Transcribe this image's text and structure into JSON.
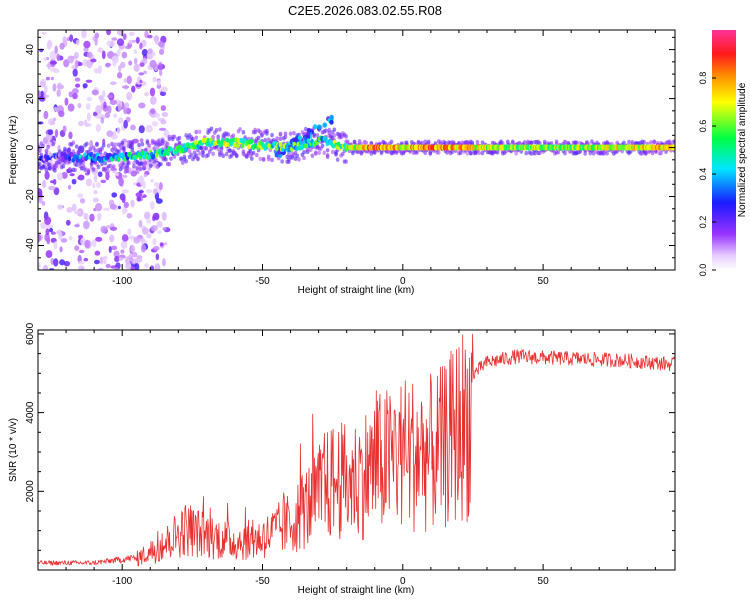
{
  "title": "C2E5.2026.083.02.55.R08",
  "colors": {
    "snr_line": "#e83030",
    "background": "#ffffff",
    "axis": "#000000"
  },
  "chart_data": [
    {
      "type": "heatmap",
      "xlabel": "Height of straight line (km)",
      "ylabel": "Frequency (Hz)",
      "xlim": [
        -130,
        97
      ],
      "ylim": [
        -50,
        48
      ],
      "x_ticks": [
        -100,
        -50,
        0,
        50
      ],
      "y_ticks": [
        -40,
        -20,
        0,
        20,
        40
      ],
      "colorbar": {
        "label": "Normalized spectral amplitude",
        "range": [
          0,
          1
        ],
        "ticks": [
          "0.0",
          "0.2",
          "0.4",
          "0.6",
          "0.8"
        ],
        "colormap": "rainbow (white, purple, blue, cyan, green, yellow, orange, red, magenta)"
      },
      "ridge": [
        {
          "x": -130,
          "freq": -4,
          "amp": 0.1
        },
        {
          "x": -110,
          "freq": -4,
          "amp": 0.35
        },
        {
          "x": -100,
          "freq": -4,
          "amp": 0.4
        },
        {
          "x": -90,
          "freq": -3,
          "amp": 0.45
        },
        {
          "x": -80,
          "freq": -1,
          "amp": 0.5
        },
        {
          "x": -70,
          "freq": 2,
          "amp": 0.55
        },
        {
          "x": -60,
          "freq": 2,
          "amp": 0.6
        },
        {
          "x": -50,
          "freq": 1,
          "amp": 0.55
        },
        {
          "x": -40,
          "freq": 0,
          "amp": 0.5
        },
        {
          "x": -30,
          "freq": 3,
          "amp": 0.45
        },
        {
          "x": -20,
          "freq": 0,
          "amp": 0.6
        },
        {
          "x": -10,
          "freq": 0,
          "amp": 0.85
        },
        {
          "x": 0,
          "freq": 0,
          "amp": 0.7
        },
        {
          "x": 10,
          "freq": 0,
          "amp": 0.8
        },
        {
          "x": 20,
          "freq": 0,
          "amp": 0.75
        },
        {
          "x": 40,
          "freq": 0,
          "amp": 0.6
        },
        {
          "x": 60,
          "freq": 0,
          "amp": 0.6
        },
        {
          "x": 80,
          "freq": 0,
          "amp": 0.7
        },
        {
          "x": 95,
          "freq": 0,
          "amp": 0.75
        }
      ],
      "scatter_noise_region": [
        -130,
        -90
      ],
      "branches": [
        {
          "x_start": -45,
          "x_end": -25,
          "freq_start": -3,
          "freq_end": 12
        }
      ]
    },
    {
      "type": "line",
      "xlabel": "Height of straight line (km)",
      "ylabel": "SNR (10 * v/v)",
      "xlim": [
        -130,
        97
      ],
      "ylim": [
        0,
        6100
      ],
      "x_ticks": [
        -100,
        -50,
        0,
        50
      ],
      "y_ticks": [
        2000,
        4000,
        6000
      ],
      "envelope": [
        {
          "x": -130,
          "y": 200
        },
        {
          "x": -110,
          "y": 200
        },
        {
          "x": -95,
          "y": 350
        },
        {
          "x": -85,
          "y": 800
        },
        {
          "x": -78,
          "y": 1300
        },
        {
          "x": -70,
          "y": 1100
        },
        {
          "x": -60,
          "y": 900
        },
        {
          "x": -50,
          "y": 1000
        },
        {
          "x": -40,
          "y": 1500
        },
        {
          "x": -32,
          "y": 2200
        },
        {
          "x": -25,
          "y": 2800
        },
        {
          "x": -18,
          "y": 2800
        },
        {
          "x": -10,
          "y": 3300
        },
        {
          "x": 0,
          "y": 3700
        },
        {
          "x": 10,
          "y": 3700
        },
        {
          "x": 15,
          "y": 3900
        },
        {
          "x": 20,
          "y": 4500
        },
        {
          "x": 25,
          "y": 5000
        },
        {
          "x": 30,
          "y": 5300
        },
        {
          "x": 40,
          "y": 5450
        },
        {
          "x": 60,
          "y": 5400
        },
        {
          "x": 80,
          "y": 5350
        },
        {
          "x": 97,
          "y": 5250
        }
      ],
      "peak_max": 6000
    }
  ]
}
